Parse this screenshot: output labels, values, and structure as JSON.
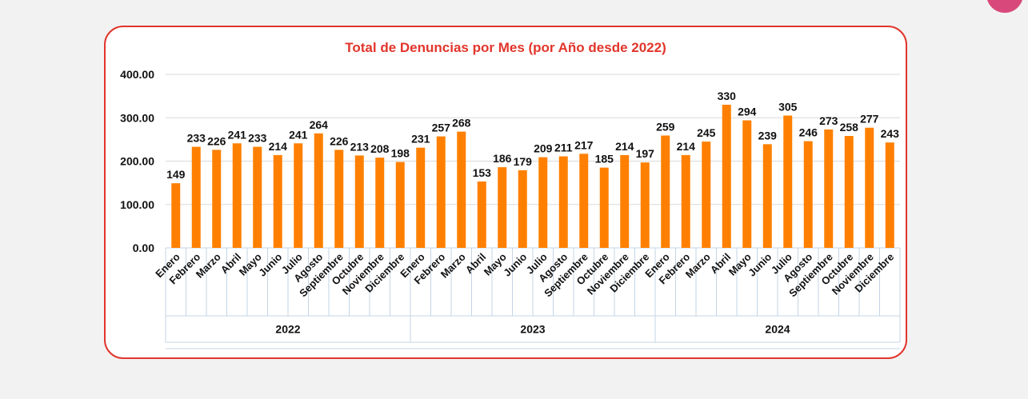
{
  "chart_data": {
    "type": "bar",
    "title": "Total de Denuncias por Mes (por Año desde 2022)",
    "xlabel": "",
    "ylabel": "",
    "ylim": [
      0,
      400
    ],
    "yticks": [
      "0.00",
      "100.00",
      "200.00",
      "300.00",
      "400.00"
    ],
    "grid": true,
    "legend": "none",
    "groups": [
      {
        "label": "2022",
        "categories": [
          "Enero",
          "Febrero",
          "Marzo",
          "Abril",
          "Mayo",
          "Junio",
          "Julio",
          "Agosto",
          "Septiembre",
          "Octubre",
          "Noviembre",
          "Diciembre"
        ],
        "values": [
          149,
          233,
          226,
          241,
          233,
          214,
          241,
          264,
          226,
          213,
          208,
          198
        ]
      },
      {
        "label": "2023",
        "categories": [
          "Enero",
          "Febrero",
          "Marzo",
          "Abril",
          "Mayo",
          "Junio",
          "Julio",
          "Agosto",
          "Septiembre",
          "Octubre",
          "Noviembre",
          "Diciembre"
        ],
        "values": [
          231,
          257,
          268,
          153,
          186,
          179,
          209,
          211,
          217,
          185,
          214,
          197
        ]
      },
      {
        "label": "2024",
        "categories": [
          "Enero",
          "Febrero",
          "Marzo",
          "Abril",
          "Mayo",
          "Junio",
          "Julio",
          "Agosto",
          "Septiembre",
          "Octubre",
          "Noviembre",
          "Diciembre"
        ],
        "values": [
          259,
          214,
          245,
          330,
          294,
          239,
          305,
          246,
          273,
          258,
          277,
          243
        ]
      }
    ],
    "colors": {
      "bar": "#ff8000",
      "title": "#e2352b",
      "card_border": "#e2352b",
      "grid": "#d9d9d9",
      "axis_table": "#c5d5e4"
    }
  }
}
